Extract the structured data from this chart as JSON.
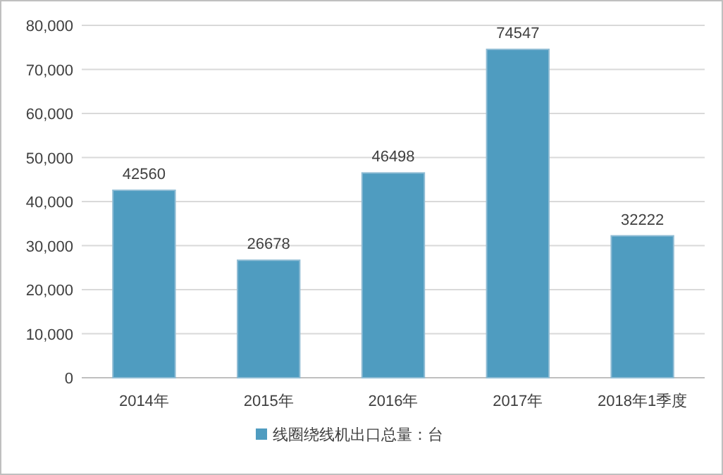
{
  "chart_data": {
    "type": "bar",
    "categories": [
      "2014年",
      "2015年",
      "2016年",
      "2017年",
      "2018年1季度"
    ],
    "series": [
      {
        "name": "线圈绕线机出口总量：台",
        "color": "#4f9cc0",
        "values": [
          42560,
          26678,
          46498,
          74547,
          32222
        ]
      }
    ],
    "ylim": [
      0,
      80000
    ],
    "yticks": [
      0,
      {
        "value": 10000,
        "label": "10,000"
      },
      {
        "value": 20000,
        "label": "20,000"
      },
      {
        "value": 30000,
        "label": "30,000"
      },
      {
        "value": 40000,
        "label": "40,000"
      },
      {
        "value": 50000,
        "label": "50,000"
      },
      {
        "value": 60000,
        "label": "60,000"
      },
      {
        "value": 70000,
        "label": "70,000"
      },
      {
        "value": 80000,
        "label": "80,000"
      }
    ],
    "grid": "y",
    "legend": "bottom",
    "data_labels": true
  }
}
